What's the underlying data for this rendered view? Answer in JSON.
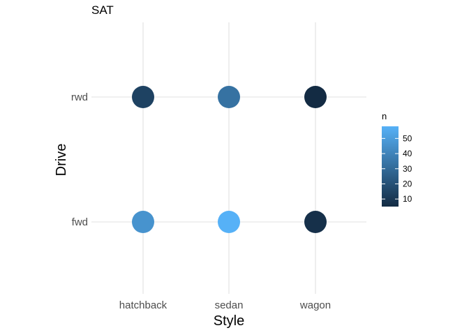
{
  "chart_data": {
    "type": "scatter",
    "title": "SAT",
    "xlabel": "Style",
    "ylabel": "Drive",
    "x_categories": [
      "hatchback",
      "sedan",
      "wagon"
    ],
    "y_categories": [
      "fwd",
      "rwd"
    ],
    "grid": true,
    "points": [
      {
        "x": "hatchback",
        "y": "rwd",
        "n": 14
      },
      {
        "x": "sedan",
        "y": "rwd",
        "n": 33
      },
      {
        "x": "wagon",
        "y": "rwd",
        "n": 5
      },
      {
        "x": "hatchback",
        "y": "fwd",
        "n": 46
      },
      {
        "x": "sedan",
        "y": "fwd",
        "n": 58
      },
      {
        "x": "wagon",
        "y": "fwd",
        "n": 7
      }
    ],
    "legend": {
      "title": "n",
      "ticks": [
        10,
        20,
        30,
        40,
        50
      ],
      "range": [
        5,
        58
      ],
      "placement": "right",
      "low_color": "#132B43",
      "high_color": "#56B1F7"
    }
  },
  "colors": {
    "grid": "#e0e0e0",
    "tick_text": "#4d4d4d",
    "background": "#ffffff"
  }
}
